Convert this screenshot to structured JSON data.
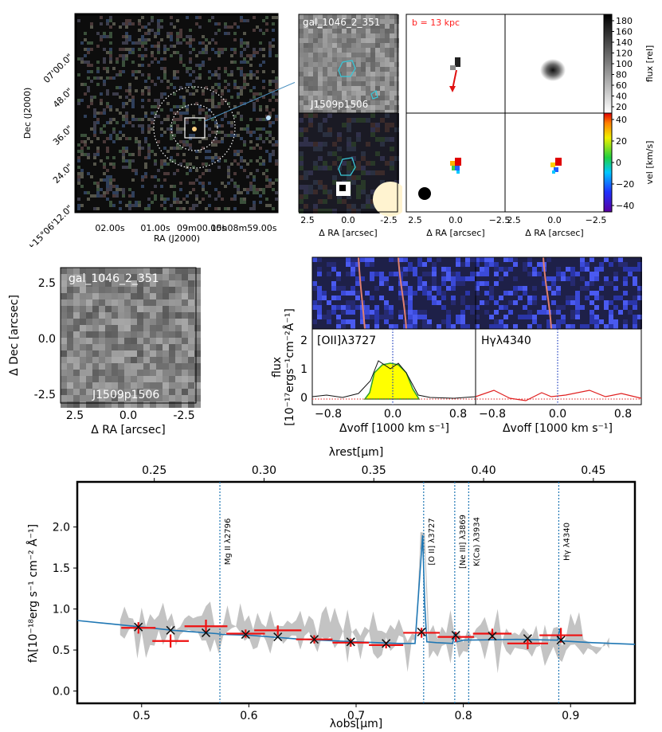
{
  "colors": {
    "obs_spectrum": "#c3c3c3",
    "model": "#1f77b4",
    "photometry": "#ee1111",
    "marker": "#111111",
    "line_marker": "#1f77b4",
    "fit_fill": "#ffff00",
    "fit_line": "#2ca02c",
    "cbar_vel": "viridis-like rainbow"
  },
  "top_panels": {
    "wide_image": {
      "xlabel": "RA (J2000)",
      "ylabel": "Dec (J2000)",
      "x_ticks": [
        "02.00s",
        "01.00s",
        "09m00.00s",
        "15h08m59.00s"
      ],
      "y_ticks": [
        "07'00.0\"",
        "48.0\"",
        "36.0\"",
        "24.0\"",
        "+15°06'12.0\""
      ]
    },
    "zoom_images": {
      "top_label": "gal_1046_2_351",
      "bottom_label": "J1509p1506",
      "xlabel": "Δ RA [arcsec]",
      "x_ticks": [
        "2.5",
        "0.0",
        "-2.5"
      ]
    },
    "kinematics": {
      "annotation": "b = 13 kpc",
      "xlabel": "Δ RA [arcsec]",
      "x_ticks": [
        "2.5",
        "0.0",
        "−2.5"
      ],
      "x_ticks_left": [
        "2.5",
        "0.0",
        "−2.5"
      ],
      "flux_cbar": {
        "label": "flux [rel]",
        "ticks": [
          "180",
          "160",
          "140",
          "120",
          "100",
          "80",
          "60",
          "40",
          "20"
        ]
      },
      "vel_cbar": {
        "label": "vel [km/s]",
        "ticks": [
          "40",
          "20",
          "0",
          "−20",
          "−40"
        ]
      }
    }
  },
  "cutout": {
    "top_label": "gal_1046_2_351",
    "bottom_label": "J1509p1506",
    "xlabel": "Δ RA [arcsec]",
    "ylabel": "Δ Dec [arcsec]",
    "x_ticks": [
      "2.5",
      "0.0",
      "-2.5"
    ],
    "y_ticks": [
      "2.5",
      "0.0",
      "-2.5"
    ]
  },
  "line_panels": {
    "ylabel1": "flux",
    "ylabel2": "[10⁻¹⁷ergs⁻¹cm⁻²Å⁻¹]",
    "xlabel": "Δvoff [1000 km s⁻¹]",
    "y_ticks": [
      "2",
      "1",
      "0"
    ],
    "x_ticks": [
      "−0.8",
      "−0.4",
      "0.0",
      "0.4",
      "0.8"
    ],
    "panels": [
      {
        "label": "[OII]λ3727"
      },
      {
        "label": "Hγλ4340"
      }
    ]
  },
  "chart_data": [
    {
      "type": "line",
      "x_label": "λobs[μm]",
      "x_label_top": "λrest[μm]",
      "y_label": "fλ[10⁻¹⁸erg s⁻¹ cm⁻² Å⁻¹]",
      "xlim": [
        0.44,
        0.96
      ],
      "ylim": [
        -0.15,
        2.55
      ],
      "x_ticks": [
        "0.5",
        "0.6",
        "0.7",
        "0.8",
        "0.9"
      ],
      "x_ticks_top": [
        "0.25",
        "0.30",
        "0.35",
        "0.40",
        "0.45"
      ],
      "y_ticks": [
        "0.0",
        "0.5",
        "1.0",
        "1.5",
        "2.0"
      ],
      "emission_lines": [
        {
          "label": "Mg II λ2796",
          "x": 0.573
        },
        {
          "label": "[O II] λ3727",
          "x": 0.763
        },
        {
          "label": "[Ne III] λ3869",
          "x": 0.792
        },
        {
          "label": "K(Ca) λ3934",
          "x": 0.805
        },
        {
          "label": "Hγ λ4340",
          "x": 0.889
        }
      ],
      "photometry": {
        "x": [
          0.497,
          0.527,
          0.56,
          0.597,
          0.627,
          0.661,
          0.695,
          0.728,
          0.761,
          0.793,
          0.827,
          0.86,
          0.891
        ],
        "y": [
          0.77,
          0.61,
          0.79,
          0.7,
          0.74,
          0.63,
          0.59,
          0.56,
          0.71,
          0.66,
          0.7,
          0.58,
          0.68
        ],
        "xerr": [
          0.016,
          0.017,
          0.02,
          0.018,
          0.022,
          0.017,
          0.017,
          0.016,
          0.017,
          0.017,
          0.018,
          0.019,
          0.02
        ],
        "yerr": [
          0.07,
          0.08,
          0.08,
          0.05,
          0.06,
          0.05,
          0.05,
          0.04,
          0.06,
          0.06,
          0.06,
          0.07,
          0.09
        ]
      },
      "model_photometry": {
        "x": [
          0.497,
          0.527,
          0.56,
          0.597,
          0.627,
          0.661,
          0.695,
          0.728,
          0.761,
          0.793,
          0.827,
          0.86,
          0.891
        ],
        "y": [
          0.78,
          0.74,
          0.71,
          0.69,
          0.66,
          0.63,
          0.6,
          0.58,
          0.72,
          0.68,
          0.67,
          0.64,
          0.62
        ]
      },
      "model": {
        "x": [
          0.44,
          0.47,
          0.5,
          0.53,
          0.56,
          0.57,
          0.575,
          0.6,
          0.65,
          0.7,
          0.74,
          0.755,
          0.762,
          0.764,
          0.766,
          0.775,
          0.79,
          0.792,
          0.794,
          0.8,
          0.85,
          0.888,
          0.89,
          0.892,
          0.92,
          0.96
        ],
        "y": [
          0.86,
          0.82,
          0.78,
          0.74,
          0.71,
          0.7,
          0.69,
          0.68,
          0.63,
          0.6,
          0.58,
          0.58,
          1.9,
          1.05,
          0.6,
          0.59,
          0.58,
          0.72,
          0.6,
          0.62,
          0.63,
          0.62,
          0.76,
          0.61,
          0.59,
          0.57
        ]
      }
    }
  ]
}
